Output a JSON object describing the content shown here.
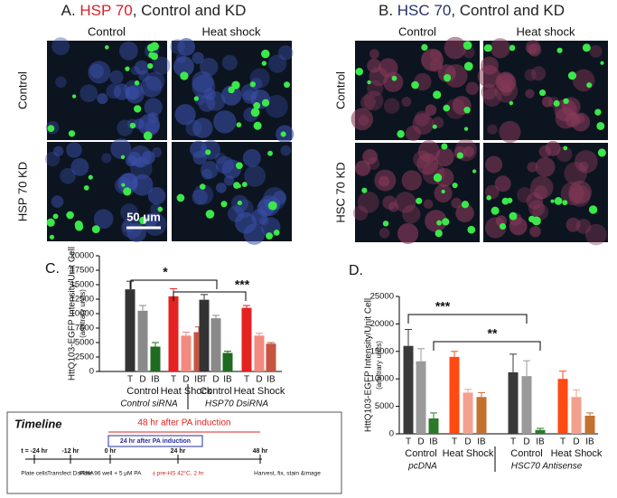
{
  "panel_a": {
    "title_parts": [
      "A. ",
      "HSP 70",
      ", Control and KD"
    ],
    "columns": [
      "Control",
      "Heat shock"
    ],
    "rows": [
      "Control",
      "HSP 70 KD"
    ],
    "scale_bar": "50 μm"
  },
  "panel_b": {
    "title_parts": [
      "B. ",
      "HSC 70",
      ", Control and KD"
    ],
    "columns": [
      "Control",
      "Heat shock"
    ],
    "rows": [
      "Control",
      "HSC 70 KD"
    ]
  },
  "timeline": {
    "title": "Timeline",
    "span_48": "48 hr after PA induction",
    "span_24": "24 hr after PA induction",
    "times": [
      "t = -24 hr",
      "-12 hr",
      "0 hr",
      "24 hr",
      "48 hr"
    ],
    "events": [
      "Plate cells",
      "Transfect DsiRNA",
      "Plate 96 well + 5 μM PA",
      "± pre-HS 42°C, 2 hr",
      "Harvest, fix, stain &image"
    ]
  },
  "chart_data": [
    {
      "type": "bar",
      "panel": "C.",
      "ylabel": "HttQ103-EGFP Intensity/Unit Cell",
      "ylabel_units": "(arbitrary units)",
      "categories": [
        "T",
        "D",
        "IB",
        "T",
        "D",
        "IB",
        "T",
        "D",
        "IB",
        "T",
        "D",
        "IB"
      ],
      "values": [
        14200,
        10500,
        4300,
        13000,
        6200,
        6800,
        12400,
        9200,
        3200,
        11000,
        6200,
        4800
      ],
      "errors": [
        1400,
        900,
        700,
        1300,
        600,
        900,
        900,
        500,
        300,
        400,
        400,
        200
      ],
      "colors": [
        "#333333",
        "#8a8a8a",
        "#1f6b1f",
        "#e42222",
        "#f28a80",
        "#c4553f",
        "#333333",
        "#8a8a8a",
        "#1f6b1f",
        "#e42222",
        "#f28a80",
        "#c4553f"
      ],
      "groups": [
        "Control",
        "Heat Shock",
        "Control",
        "Heat Shock"
      ],
      "treatments": [
        "Control siRNA",
        "HSP70 DsiRNA"
      ],
      "annotations": [
        "*",
        "***"
      ],
      "ylim": [
        0,
        20000
      ],
      "yticks": [
        0,
        2500,
        5000,
        7500,
        10000,
        12500,
        15000,
        17500,
        20000
      ]
    },
    {
      "type": "bar",
      "panel": "D.",
      "ylabel": "HttQ103-EGFP Intensity/Unit Cell",
      "ylabel_units": "(arbitrary units)",
      "categories": [
        "T",
        "D",
        "IB",
        "T",
        "D",
        "IB",
        "T",
        "D",
        "IB",
        "T",
        "D",
        "IB"
      ],
      "values": [
        16000,
        13200,
        2800,
        14000,
        7500,
        6700,
        11200,
        10500,
        700,
        10000,
        6700,
        3300
      ],
      "errors": [
        3000,
        2300,
        1000,
        1000,
        600,
        800,
        3300,
        2800,
        300,
        1400,
        1300,
        500
      ],
      "colors": [
        "#3a3a3a",
        "#9a9a9a",
        "#2a7a2a",
        "#ff4a12",
        "#f4a08e",
        "#c4702e",
        "#3a3a3a",
        "#9a9a9a",
        "#2a7a2a",
        "#ff4a12",
        "#f4a08e",
        "#c4702e"
      ],
      "groups": [
        "Control",
        "Heat Shock",
        "Control",
        "Heat Shock"
      ],
      "treatments": [
        "pcDNA",
        "HSC70 Antisense"
      ],
      "annotations": [
        "***",
        "**"
      ],
      "ylim": [
        0,
        25000
      ],
      "yticks": [
        0,
        5000,
        10000,
        15000,
        20000,
        25000
      ]
    }
  ]
}
